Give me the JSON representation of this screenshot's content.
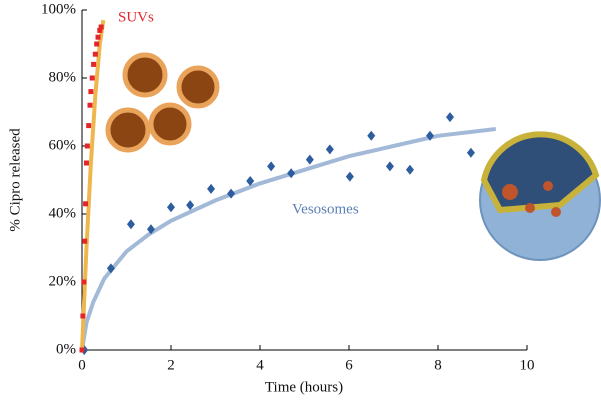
{
  "chart_data": {
    "type": "scatter",
    "xlabel": "Time (hours)",
    "ylabel": "% Cipro released",
    "xlim": [
      0,
      10
    ],
    "ylim": [
      0,
      100
    ],
    "xticks": [
      0,
      2,
      4,
      6,
      8,
      10
    ],
    "yticks": [
      {
        "value": 0,
        "label": "0%"
      },
      {
        "value": 20,
        "label": "20%"
      },
      {
        "value": 40,
        "label": "40%"
      },
      {
        "value": 60,
        "label": "60%"
      },
      {
        "value": 80,
        "label": "80%"
      },
      {
        "value": 100,
        "label": "100%"
      }
    ],
    "series": [
      {
        "name": "Vesosomes",
        "color": "#2d5d9f",
        "marker": "diamond",
        "line_color": "#a3b9d8",
        "x": [
          0.05,
          0.65,
          1.1,
          1.55,
          2.0,
          2.43,
          2.9,
          3.35,
          3.78,
          4.25,
          4.7,
          5.12,
          5.57,
          6.02,
          6.5,
          6.92,
          7.37,
          7.82,
          8.27,
          8.74
        ],
        "values": [
          0,
          24,
          37,
          35.5,
          42,
          42.6,
          47.4,
          46,
          49.7,
          54,
          52,
          56,
          59,
          51,
          63,
          54,
          53,
          63,
          68.5,
          58
        ],
        "fit_x": [
          0,
          0.1,
          0.25,
          0.5,
          1,
          1.5,
          2,
          3,
          4,
          5,
          6,
          7,
          8,
          9.3
        ],
        "fit_values": [
          0,
          8,
          14,
          21,
          29,
          34,
          38,
          44,
          49,
          53,
          57,
          60,
          63,
          65
        ]
      },
      {
        "name": "SUVs",
        "color": "#e3262a",
        "marker": "square",
        "line_color": "#f0b64e",
        "x": [
          0,
          0.02,
          0.04,
          0.06,
          0.08,
          0.1,
          0.12,
          0.15,
          0.18,
          0.2,
          0.23,
          0.26,
          0.3,
          0.33,
          0.36,
          0.4,
          0.43
        ],
        "values": [
          0,
          10,
          20,
          32,
          43,
          55,
          60,
          66,
          72,
          76,
          80,
          84,
          87,
          90,
          92,
          94,
          95
        ],
        "fit_x": [
          0,
          0.1,
          0.2,
          0.3,
          0.4,
          0.48
        ],
        "fit_values": [
          0,
          30,
          55,
          75,
          90,
          97
        ]
      }
    ]
  }
}
